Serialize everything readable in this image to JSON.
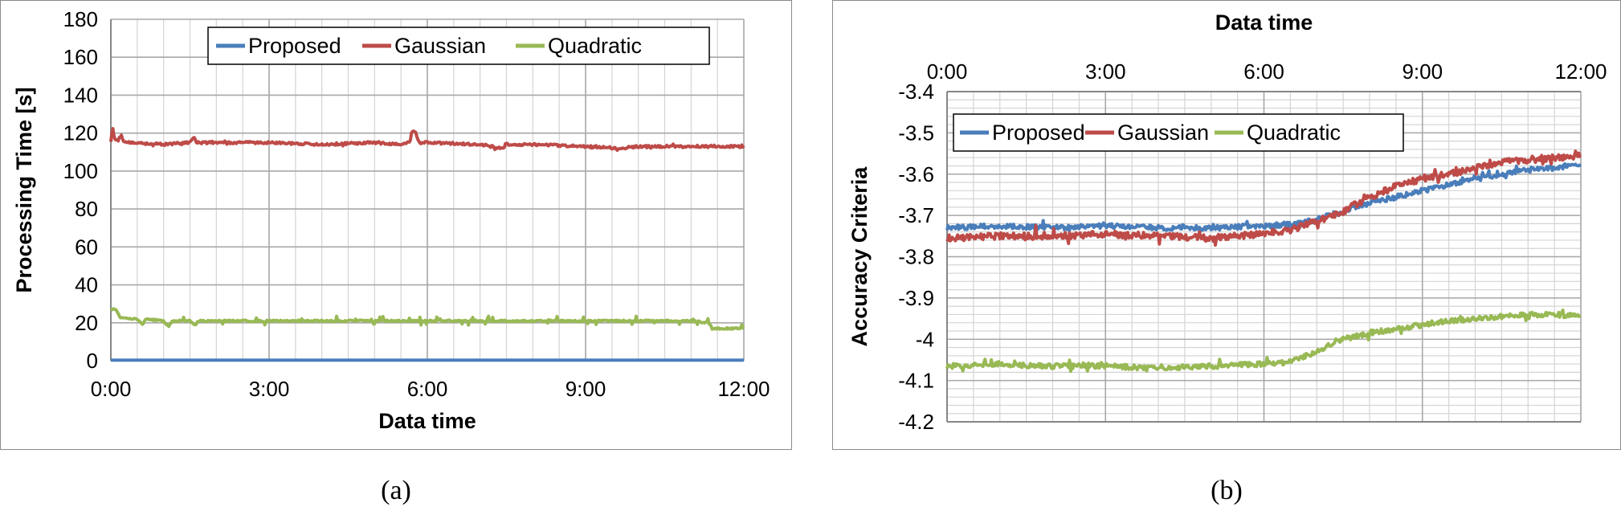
{
  "colors": {
    "proposed": "#4a7ebb",
    "gaussian": "#be4b48",
    "quadratic": "#98b954",
    "grid": "#bdbdbd",
    "axis": "#8a8a8a"
  },
  "panel_labels": {
    "a": "(a)",
    "b": "(b)"
  },
  "chart_data": [
    {
      "type": "line",
      "xlabel": "Data time",
      "ylabel": "Processing Time [s]",
      "xlim": [
        0,
        720
      ],
      "ylim": [
        0,
        180
      ],
      "xticks": [
        0,
        180,
        360,
        540,
        720
      ],
      "xticklabels": [
        "0:00",
        "3:00",
        "6:00",
        "9:00",
        "12:00"
      ],
      "yticks": [
        0,
        20,
        40,
        60,
        80,
        100,
        120,
        140,
        160,
        180
      ],
      "yticklabels": [
        "0",
        "20",
        "40",
        "60",
        "80",
        "100",
        "120",
        "140",
        "160",
        "180"
      ],
      "x_axis_position": "bottom",
      "grid": true,
      "minor_x_step": 30,
      "legend": {
        "placement": "top-right",
        "entries": [
          "Proposed",
          "Gaussian",
          "Quadratic"
        ]
      },
      "series": [
        {
          "name": "Proposed",
          "color_key": "proposed",
          "points": [
            [
              0,
              0.3
            ],
            [
              720,
              0.3
            ]
          ]
        },
        {
          "name": "Gaussian",
          "color_key": "gaussian",
          "points": [
            [
              0,
              116
            ],
            [
              2,
              124
            ],
            [
              4,
              117
            ],
            [
              8,
              116
            ],
            [
              12,
              119
            ],
            [
              15,
              115
            ],
            [
              30,
              115
            ],
            [
              60,
              114
            ],
            [
              90,
              115
            ],
            [
              94,
              118
            ],
            [
              98,
              115
            ],
            [
              120,
              115
            ],
            [
              180,
              115
            ],
            [
              240,
              114
            ],
            [
              300,
              115
            ],
            [
              330,
              114
            ],
            [
              340,
              115
            ],
            [
              342,
              120
            ],
            [
              346,
              121
            ],
            [
              350,
              115
            ],
            [
              360,
              115
            ],
            [
              420,
              114
            ],
            [
              445,
              112
            ],
            [
              450,
              114
            ],
            [
              480,
              114
            ],
            [
              540,
              113
            ],
            [
              580,
              112
            ],
            [
              600,
              113
            ],
            [
              660,
              113
            ],
            [
              720,
              113
            ]
          ]
        },
        {
          "name": "Quadratic",
          "color_key": "quadratic",
          "points": [
            [
              0,
              27
            ],
            [
              6,
              27
            ],
            [
              10,
              23
            ],
            [
              20,
              22
            ],
            [
              30,
              22
            ],
            [
              36,
              19
            ],
            [
              40,
              22
            ],
            [
              60,
              21
            ],
            [
              66,
              18
            ],
            [
              70,
              21
            ],
            [
              90,
              21
            ],
            [
              96,
              19
            ],
            [
              100,
              21
            ],
            [
              120,
              21
            ],
            [
              180,
              21
            ],
            [
              240,
              21
            ],
            [
              300,
              21
            ],
            [
              360,
              21
            ],
            [
              420,
              21
            ],
            [
              480,
              21
            ],
            [
              540,
              21
            ],
            [
              600,
              21
            ],
            [
              660,
              21
            ],
            [
              680,
              20
            ],
            [
              684,
              17
            ],
            [
              700,
              17
            ],
            [
              720,
              17
            ]
          ]
        }
      ]
    },
    {
      "type": "line",
      "xlabel": "Data time",
      "ylabel": "Accuracy Criteria",
      "xlim": [
        0,
        720
      ],
      "ylim": [
        -4.2,
        -3.4
      ],
      "xticks": [
        0,
        180,
        360,
        540,
        720
      ],
      "xticklabels": [
        "0:00",
        "3:00",
        "6:00",
        "9:00",
        "12:00"
      ],
      "yticks": [
        -4.2,
        -4.1,
        -4.0,
        -3.9,
        -3.8,
        -3.7,
        -3.6,
        -3.5,
        -3.4
      ],
      "yticklabels": [
        "-4.2",
        "-4.1",
        "-4",
        "-3.9",
        "-3.8",
        "-3.7",
        "-3.6",
        "-3.5",
        "-3.4"
      ],
      "x_axis_position": "top",
      "grid": true,
      "minor_x_step": 30,
      "minor_y_step": 0.02,
      "legend": {
        "placement": "top-left",
        "entries": [
          "Proposed",
          "Gaussian",
          "Quadratic"
        ]
      },
      "series": [
        {
          "name": "Proposed",
          "color_key": "proposed",
          "points": [
            [
              0,
              -3.73
            ],
            [
              60,
              -3.725
            ],
            [
              120,
              -3.73
            ],
            [
              180,
              -3.725
            ],
            [
              240,
              -3.73
            ],
            [
              300,
              -3.73
            ],
            [
              360,
              -3.725
            ],
            [
              400,
              -3.72
            ],
            [
              420,
              -3.71
            ],
            [
              450,
              -3.69
            ],
            [
              480,
              -3.67
            ],
            [
              510,
              -3.655
            ],
            [
              540,
              -3.64
            ],
            [
              570,
              -3.625
            ],
            [
              600,
              -3.61
            ],
            [
              630,
              -3.6
            ],
            [
              660,
              -3.59
            ],
            [
              690,
              -3.585
            ],
            [
              720,
              -3.575
            ]
          ]
        },
        {
          "name": "Gaussian",
          "color_key": "gaussian",
          "points": [
            [
              0,
              -3.755
            ],
            [
              60,
              -3.75
            ],
            [
              120,
              -3.75
            ],
            [
              180,
              -3.745
            ],
            [
              240,
              -3.75
            ],
            [
              300,
              -3.755
            ],
            [
              360,
              -3.745
            ],
            [
              390,
              -3.735
            ],
            [
              420,
              -3.715
            ],
            [
              450,
              -3.69
            ],
            [
              480,
              -3.655
            ],
            [
              510,
              -3.63
            ],
            [
              540,
              -3.61
            ],
            [
              570,
              -3.6
            ],
            [
              600,
              -3.585
            ],
            [
              630,
              -3.57
            ],
            [
              660,
              -3.565
            ],
            [
              690,
              -3.56
            ],
            [
              720,
              -3.555
            ]
          ]
        },
        {
          "name": "Quadratic",
          "color_key": "quadratic",
          "points": [
            [
              0,
              -4.065
            ],
            [
              60,
              -4.06
            ],
            [
              120,
              -4.065
            ],
            [
              180,
              -4.065
            ],
            [
              240,
              -4.07
            ],
            [
              300,
              -4.065
            ],
            [
              360,
              -4.06
            ],
            [
              390,
              -4.055
            ],
            [
              420,
              -4.03
            ],
            [
              450,
              -4.0
            ],
            [
              480,
              -3.985
            ],
            [
              510,
              -3.975
            ],
            [
              540,
              -3.965
            ],
            [
              570,
              -3.955
            ],
            [
              600,
              -3.95
            ],
            [
              630,
              -3.945
            ],
            [
              660,
              -3.94
            ],
            [
              690,
              -3.94
            ],
            [
              720,
              -3.945
            ]
          ]
        }
      ]
    }
  ]
}
